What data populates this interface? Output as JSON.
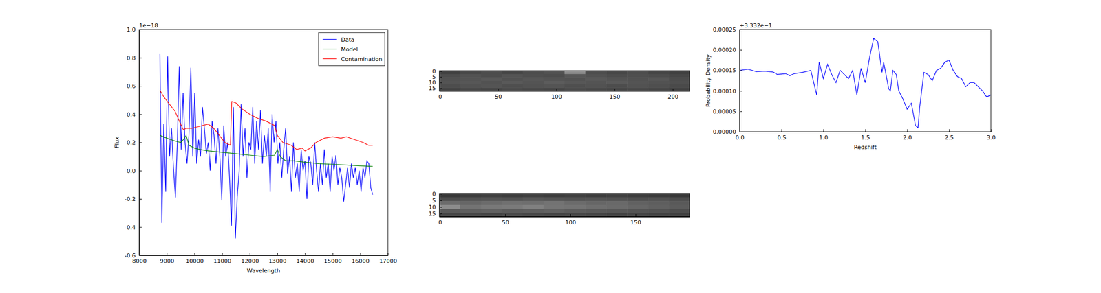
{
  "chart_data": [
    {
      "type": "line",
      "x_label": "Wavelength",
      "y_label": "Flux",
      "annotations": [
        "1e−18"
      ],
      "xlim": [
        8000,
        17000
      ],
      "xticks": [
        8000,
        9000,
        10000,
        11000,
        12000,
        13000,
        14000,
        15000,
        16000,
        17000
      ],
      "ylim": [
        -0.6,
        1.0
      ],
      "yticks": [
        -0.6,
        -0.4,
        -0.2,
        {
          "value": 0,
          "label": "0.0"
        },
        0.2,
        0.4,
        0.6,
        0.8,
        {
          "value": 1.0,
          "label": "1.0"
        }
      ],
      "legend": "upper right",
      "series": [
        {
          "name": "Data",
          "color": "#0000ff",
          "x": [
            8750,
            8820,
            8890,
            8960,
            9030,
            9100,
            9170,
            9240,
            9310,
            9380,
            9450,
            9520,
            9590,
            9660,
            9730,
            9800,
            9870,
            9940,
            10010,
            10080,
            10150,
            10220,
            10290,
            10360,
            10430,
            10500,
            10570,
            10640,
            10710,
            10780,
            10850,
            10920,
            10990,
            11060,
            11130,
            11200,
            11270,
            11340,
            11410,
            11480,
            11550,
            11620,
            11690,
            11760,
            11830,
            11900,
            11970,
            12040,
            12110,
            12180,
            12250,
            12320,
            12390,
            12460,
            12530,
            12600,
            12670,
            12740,
            12810,
            12880,
            12950,
            13020,
            13090,
            13160,
            13230,
            13300,
            13370,
            13440,
            13510,
            13580,
            13650,
            13720,
            13790,
            13860,
            13930,
            14000,
            14070,
            14140,
            14210,
            14280,
            14350,
            14420,
            14490,
            14560,
            14630,
            14700,
            14770,
            14840,
            14910,
            14980,
            15050,
            15120,
            15190,
            15260,
            15330,
            15400,
            15470,
            15540,
            15610,
            15680,
            15750,
            15820,
            15890,
            15960,
            16030,
            16100,
            16170,
            16240,
            16310,
            16380,
            16450
          ],
          "values": [
            0.83,
            -0.37,
            0.33,
            -0.15,
            0.81,
            0.1,
            0.3,
            0.02,
            -0.19,
            0.2,
            0.74,
            0.15,
            0.55,
            0.2,
            0.05,
            0.25,
            0.73,
            0.1,
            0.55,
            0.05,
            0.22,
            0.1,
            0.45,
            0.3,
            0.12,
            0.2,
            0.0,
            0.35,
            0.25,
            0.05,
            0.3,
            0.1,
            -0.21,
            0.32,
            0.1,
            0.2,
            -0.05,
            -0.39,
            0.45,
            -0.48,
            -0.18,
            0.0,
            0.47,
            0.1,
            0.3,
            -0.05,
            0.2,
            0.15,
            0.45,
            0.05,
            0.35,
            0.15,
            0.43,
            0.05,
            0.25,
            0.1,
            0.3,
            -0.15,
            0.4,
            0.2,
            0.35,
            0.05,
            0.2,
            -0.05,
            0.15,
            0.3,
            -0.02,
            0.1,
            -0.15,
            0.2,
            -0.05,
            0.05,
            -0.15,
            0.15,
            0.0,
            0.07,
            -0.2,
            0.1,
            0.05,
            -0.1,
            0.2,
            0.0,
            -0.15,
            0.05,
            -0.1,
            0.15,
            -0.05,
            0.05,
            -0.15,
            0.1,
            0.0,
            0.11,
            -0.1,
            0.02,
            -0.05,
            -0.22,
            -0.1,
            0.02,
            -0.12,
            0.05,
            -0.05,
            0.02,
            -0.1,
            0.0,
            -0.15,
            0.02,
            -0.05,
            0.07,
            0.05,
            -0.12,
            -0.17
          ]
        },
        {
          "name": "Model",
          "color": "#008000",
          "x": [
            8750,
            9000,
            9300,
            9500,
            9600,
            9700,
            9800,
            10000,
            10200,
            10500,
            11000,
            11500,
            12000,
            12500,
            12900,
            13000,
            13100,
            13300,
            13600,
            14000,
            14500,
            15000,
            15500,
            16000,
            16450
          ],
          "values": [
            0.25,
            0.23,
            0.21,
            0.2,
            0.22,
            0.25,
            0.18,
            0.16,
            0.15,
            0.14,
            0.13,
            0.12,
            0.11,
            0.1,
            0.11,
            0.15,
            0.1,
            0.07,
            0.07,
            0.06,
            0.05,
            0.045,
            0.04,
            0.035,
            0.03
          ]
        },
        {
          "name": "Contamination",
          "color": "#ff0000",
          "x": [
            8750,
            8900,
            9100,
            9300,
            9500,
            9600,
            9700,
            9900,
            10100,
            10300,
            10500,
            10700,
            10900,
            11100,
            11300,
            11350,
            11500,
            11700,
            12000,
            12300,
            12600,
            12900,
            13000,
            13200,
            13500,
            13700,
            13900,
            14000,
            14200,
            14400,
            14700,
            15000,
            15300,
            15500,
            15800,
            16100,
            16300,
            16450
          ],
          "values": [
            0.57,
            0.52,
            0.47,
            0.42,
            0.33,
            0.29,
            0.3,
            0.3,
            0.31,
            0.32,
            0.33,
            0.3,
            0.25,
            0.2,
            0.18,
            0.49,
            0.48,
            0.44,
            0.4,
            0.37,
            0.35,
            0.32,
            0.25,
            0.2,
            0.18,
            0.15,
            0.16,
            0.14,
            0.16,
            0.2,
            0.23,
            0.24,
            0.23,
            0.24,
            0.22,
            0.2,
            0.18,
            0.18
          ]
        }
      ]
    },
    {
      "type": "heatmap",
      "xlim": [
        -0.5,
        214.5
      ],
      "xticks": [
        0,
        50,
        100,
        150,
        200
      ],
      "ylim": [
        17.5,
        -0.5
      ],
      "yticks": [
        0,
        5,
        10,
        15
      ],
      "zlim": [
        0,
        1
      ],
      "cells": [
        [
          0.25,
          0.28,
          0.3,
          0.27,
          0.3,
          0.32,
          0.55,
          0.3,
          0.28,
          0.3,
          0.27,
          0.25
        ],
        [
          0.3,
          0.32,
          0.3,
          0.33,
          0.31,
          0.3,
          0.34,
          0.32,
          0.3,
          0.31,
          0.3,
          0.28
        ],
        [
          0.32,
          0.33,
          0.35,
          0.32,
          0.34,
          0.33,
          0.32,
          0.35,
          0.33,
          0.32,
          0.34,
          0.3
        ],
        [
          0.33,
          0.34,
          0.32,
          0.35,
          0.33,
          0.36,
          0.34,
          0.33,
          0.35,
          0.33,
          0.32,
          0.31
        ],
        [
          0.3,
          0.32,
          0.33,
          0.31,
          0.32,
          0.33,
          0.31,
          0.32,
          0.3,
          0.32,
          0.31,
          0.29
        ],
        [
          0.26,
          0.28,
          0.27,
          0.29,
          0.28,
          0.27,
          0.29,
          0.28,
          0.27,
          0.28,
          0.27,
          0.25
        ]
      ]
    },
    {
      "type": "heatmap",
      "xlim": [
        -0.5,
        191.5
      ],
      "xticks": [
        0,
        50,
        100,
        150
      ],
      "ylim": [
        17.5,
        -0.5
      ],
      "yticks": [
        0,
        5,
        10,
        15
      ],
      "zlim": [
        0,
        1
      ],
      "cells": [
        [
          0.22,
          0.24,
          0.25,
          0.24,
          0.25,
          0.24,
          0.25,
          0.24,
          0.25,
          0.24,
          0.23,
          0.22
        ],
        [
          0.3,
          0.32,
          0.33,
          0.32,
          0.34,
          0.33,
          0.32,
          0.33,
          0.32,
          0.31,
          0.32,
          0.3
        ],
        [
          0.42,
          0.4,
          0.42,
          0.44,
          0.43,
          0.45,
          0.42,
          0.4,
          0.41,
          0.38,
          0.37,
          0.35
        ],
        [
          0.55,
          0.45,
          0.47,
          0.48,
          0.5,
          0.46,
          0.45,
          0.43,
          0.42,
          0.4,
          0.38,
          0.36
        ],
        [
          0.35,
          0.37,
          0.38,
          0.36,
          0.37,
          0.38,
          0.36,
          0.35,
          0.34,
          0.33,
          0.32,
          0.3
        ],
        [
          0.27,
          0.28,
          0.27,
          0.29,
          0.28,
          0.27,
          0.28,
          0.27,
          0.26,
          0.27,
          0.26,
          0.25
        ]
      ]
    },
    {
      "type": "line",
      "x_label": "Redshift",
      "y_label": "Probability Density",
      "annotations": [
        "+3.332e−1"
      ],
      "xlim": [
        0,
        3
      ],
      "xticks": [
        {
          "value": 0,
          "label": "0.0"
        },
        0.5,
        {
          "value": 1,
          "label": "1.0"
        },
        1.5,
        {
          "value": 2,
          "label": "2.0"
        },
        2.5,
        {
          "value": 3,
          "label": "3.0"
        }
      ],
      "ylim": [
        0,
        0.00025
      ],
      "yticks": [
        {
          "value": 0,
          "label": "0.00000"
        },
        {
          "value": 5e-05,
          "label": "0.00005"
        },
        {
          "value": 0.0001,
          "label": "0.00010"
        },
        {
          "value": 0.00015,
          "label": "0.00015"
        },
        {
          "value": 0.0002,
          "label": "0.00020"
        },
        {
          "value": 0.00025,
          "label": "0.00025"
        }
      ],
      "series": [
        {
          "color": "#0000ff",
          "x": [
            0.0,
            0.1,
            0.2,
            0.3,
            0.4,
            0.45,
            0.55,
            0.6,
            0.65,
            0.75,
            0.85,
            0.92,
            0.95,
            1.0,
            1.05,
            1.1,
            1.15,
            1.2,
            1.3,
            1.35,
            1.4,
            1.45,
            1.5,
            1.55,
            1.6,
            1.65,
            1.7,
            1.72,
            1.78,
            1.8,
            1.83,
            1.87,
            1.9,
            1.95,
            2.0,
            2.05,
            2.1,
            2.13,
            2.15,
            2.2,
            2.25,
            2.3,
            2.35,
            2.4,
            2.45,
            2.5,
            2.55,
            2.6,
            2.65,
            2.7,
            2.75,
            2.8,
            2.85,
            2.9,
            2.95,
            3.0
          ],
          "values": [
            0.00015,
            0.000153,
            0.000147,
            0.000148,
            0.000146,
            0.00014,
            0.000142,
            0.000137,
            0.000142,
            0.000145,
            0.00015,
            9e-05,
            0.00017,
            0.00013,
            0.000165,
            0.00014,
            0.00012,
            0.00015,
            0.00013,
            0.00015,
            9e-05,
            0.000155,
            0.00012,
            0.00018,
            0.000228,
            0.00022,
            0.000145,
            0.00017,
            0.000105,
            0.0001,
            0.00015,
            0.00014,
            0.0001,
            8e-05,
            5.5e-05,
            7e-05,
            1.5e-05,
            1e-05,
            6e-05,
            0.000145,
            0.00014,
            0.000125,
            0.00015,
            0.000155,
            0.00017,
            0.000175,
            0.00015,
            0.000135,
            0.00013,
            0.00011,
            0.00012,
            0.00012,
            0.00011,
            0.0001,
            8.5e-05,
            9e-05
          ]
        }
      ]
    }
  ]
}
